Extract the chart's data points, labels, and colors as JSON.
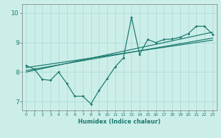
{
  "xlabel": "Humidex (Indice chaleur)",
  "bg_color": "#cceee8",
  "line_color": "#1a7a6e",
  "grid_color": "#aadddd",
  "xlim": [
    -0.5,
    23.5
  ],
  "ylim": [
    6.7,
    10.3
  ],
  "xticks": [
    0,
    1,
    2,
    3,
    4,
    5,
    6,
    7,
    8,
    9,
    10,
    11,
    12,
    13,
    14,
    15,
    16,
    17,
    18,
    19,
    20,
    21,
    22,
    23
  ],
  "yticks": [
    7,
    8,
    9,
    10
  ],
  "data_x": [
    0,
    1,
    2,
    3,
    4,
    5,
    6,
    7,
    8,
    9,
    10,
    11,
    12,
    13,
    14,
    15,
    16,
    17,
    18,
    19,
    20,
    21,
    22,
    23
  ],
  "data_y": [
    8.22,
    8.1,
    7.75,
    7.72,
    8.0,
    7.62,
    7.18,
    7.18,
    6.92,
    7.38,
    7.78,
    8.18,
    8.48,
    9.85,
    8.6,
    9.1,
    9.0,
    9.1,
    9.12,
    9.18,
    9.3,
    9.55,
    9.55,
    9.28
  ],
  "trend1_x": [
    0,
    23
  ],
  "trend1_y": [
    8.05,
    9.15
  ],
  "trend2_x": [
    0,
    23
  ],
  "trend2_y": [
    8.0,
    9.35
  ],
  "trend3_x": [
    0,
    23
  ],
  "trend3_y": [
    8.15,
    9.08
  ]
}
